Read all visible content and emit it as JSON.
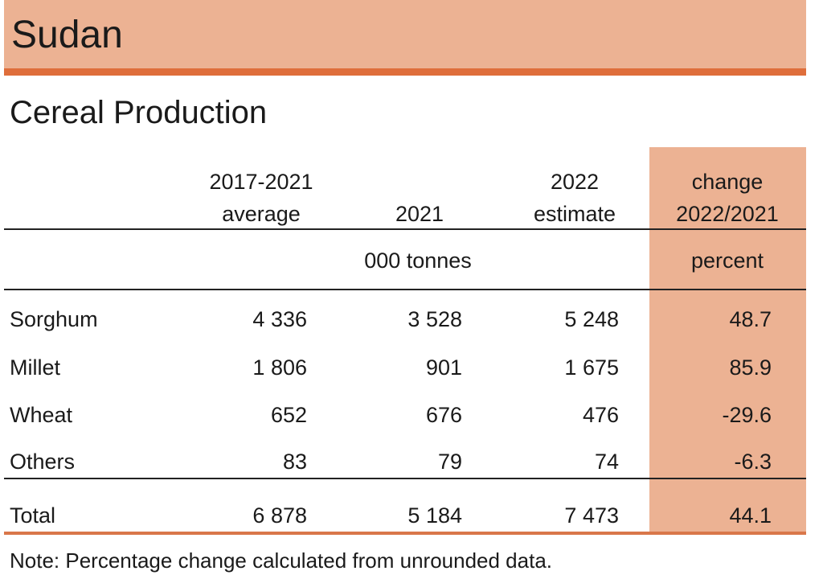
{
  "country": "Sudan",
  "title": "Cereal Production",
  "columns": [
    {
      "line1": "2017-2021",
      "line2": "average"
    },
    {
      "line1": "",
      "line2": "2021"
    },
    {
      "line1": "2022",
      "line2": "estimate"
    },
    {
      "line1": "change",
      "line2": "2022/2021"
    }
  ],
  "units": {
    "quantity": "000 tonnes",
    "change": "percent"
  },
  "rows": [
    {
      "label": "Sorghum",
      "avg": "4 336",
      "y2021": "3 528",
      "y2022": "5 248",
      "change": "48.7"
    },
    {
      "label": "Millet",
      "avg": "1 806",
      "y2021": "901",
      "y2022": "1 675",
      "change": "85.9"
    },
    {
      "label": "Wheat",
      "avg": "652",
      "y2021": "676",
      "y2022": "476",
      "change": "-29.6"
    },
    {
      "label": "Others",
      "avg": "83",
      "y2021": "79",
      "y2022": "74",
      "change": "-6.3"
    }
  ],
  "total": {
    "label": "Total",
    "avg": "6 878",
    "y2021": "5 184",
    "y2022": "7 473",
    "change": "44.1"
  },
  "note": "Note: Percentage change calculated from unrounded data.",
  "colors": {
    "header_band": "#ecb293",
    "accent": "#df6e3b"
  }
}
